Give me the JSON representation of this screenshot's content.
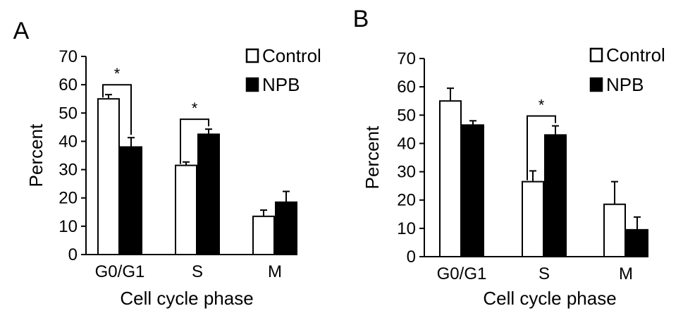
{
  "chart_data": [
    {
      "panel_label": "A",
      "type": "bar",
      "categories": [
        "G0/G1",
        "S",
        "M"
      ],
      "series": [
        {
          "name": "Control",
          "values": [
            55,
            31.5,
            13.5
          ],
          "errors": [
            1.5,
            1.2,
            2.2
          ]
        },
        {
          "name": "NPB",
          "values": [
            38,
            42.5,
            18.5
          ],
          "errors": [
            3.3,
            1.8,
            3.8
          ]
        }
      ],
      "significance": [
        {
          "category": "G0/G1",
          "label": "*"
        },
        {
          "category": "S",
          "label": "*"
        }
      ],
      "xlabel": "Cell cycle phase",
      "ylabel": "Percent",
      "ylim": [
        0,
        70
      ],
      "yticks": [
        0,
        10,
        20,
        30,
        40,
        50,
        60,
        70
      ],
      "legend": "top-right",
      "grid": false
    },
    {
      "panel_label": "B",
      "type": "bar",
      "categories": [
        "G0/G1",
        "S",
        "M"
      ],
      "series": [
        {
          "name": "Control",
          "values": [
            55,
            26.5,
            18.5
          ],
          "errors": [
            4.5,
            3.8,
            8.0
          ]
        },
        {
          "name": "NPB",
          "values": [
            46.5,
            43,
            9.5
          ],
          "errors": [
            1.5,
            3.2,
            4.5
          ]
        }
      ],
      "significance": [
        {
          "category": "S",
          "label": "*"
        }
      ],
      "xlabel": "Cell cycle phase",
      "ylabel": "Percent",
      "ylim": [
        0,
        70
      ],
      "yticks": [
        0,
        10,
        20,
        30,
        40,
        50,
        60,
        70
      ],
      "legend": "top-right",
      "grid": false
    }
  ],
  "colors": {
    "Control": "#ffffff",
    "NPB": "#000000",
    "stroke": "#000000"
  }
}
